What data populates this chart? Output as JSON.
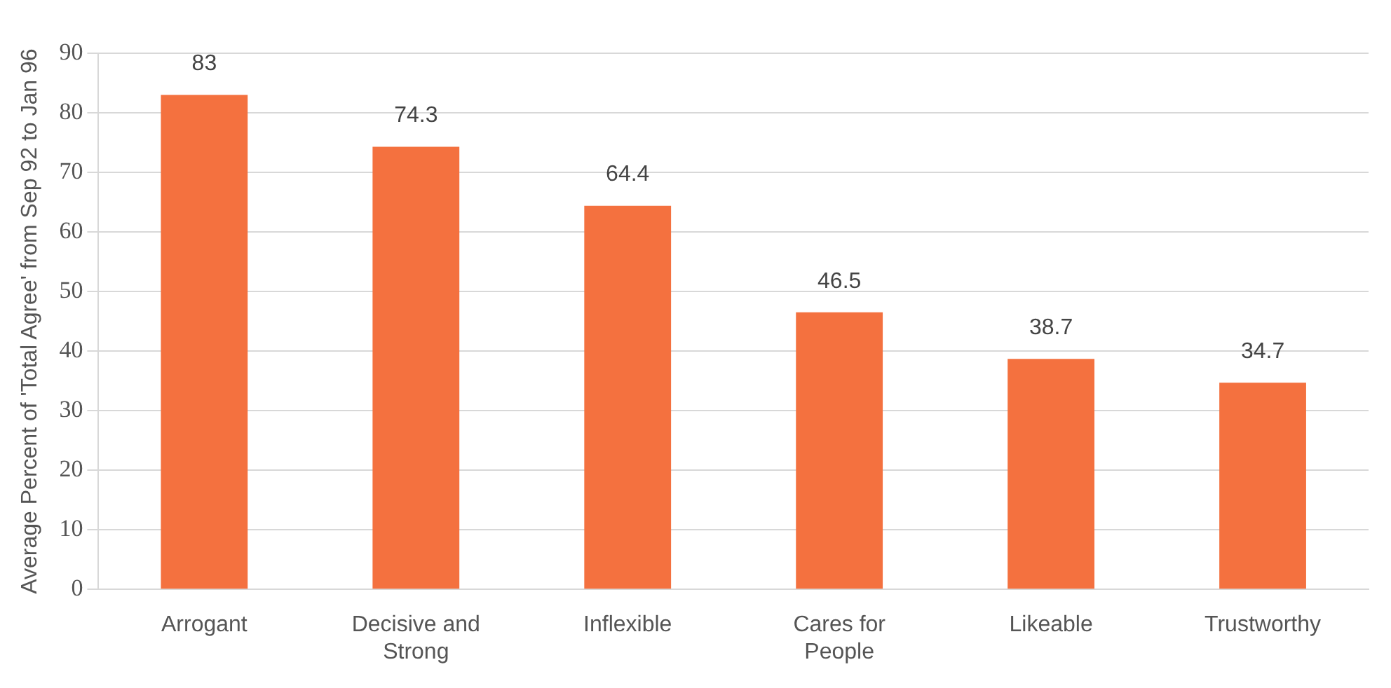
{
  "chart_data": {
    "type": "bar",
    "ylabel": "Average Percent of 'Total Agree' from Sep 92 to Jan 96",
    "categories": [
      "Arrogant",
      "Decisive and Strong",
      "Inflexible",
      "Cares for People",
      "Likeable",
      "Trustworthy"
    ],
    "values": [
      83,
      74.3,
      64.4,
      46.5,
      38.7,
      34.7
    ],
    "color": "#f4713f",
    "ylim": [
      0,
      90
    ],
    "yticks": [
      0,
      10,
      20,
      30,
      40,
      50,
      60,
      70,
      80,
      90
    ],
    "grid": "y",
    "data_labels": true
  }
}
